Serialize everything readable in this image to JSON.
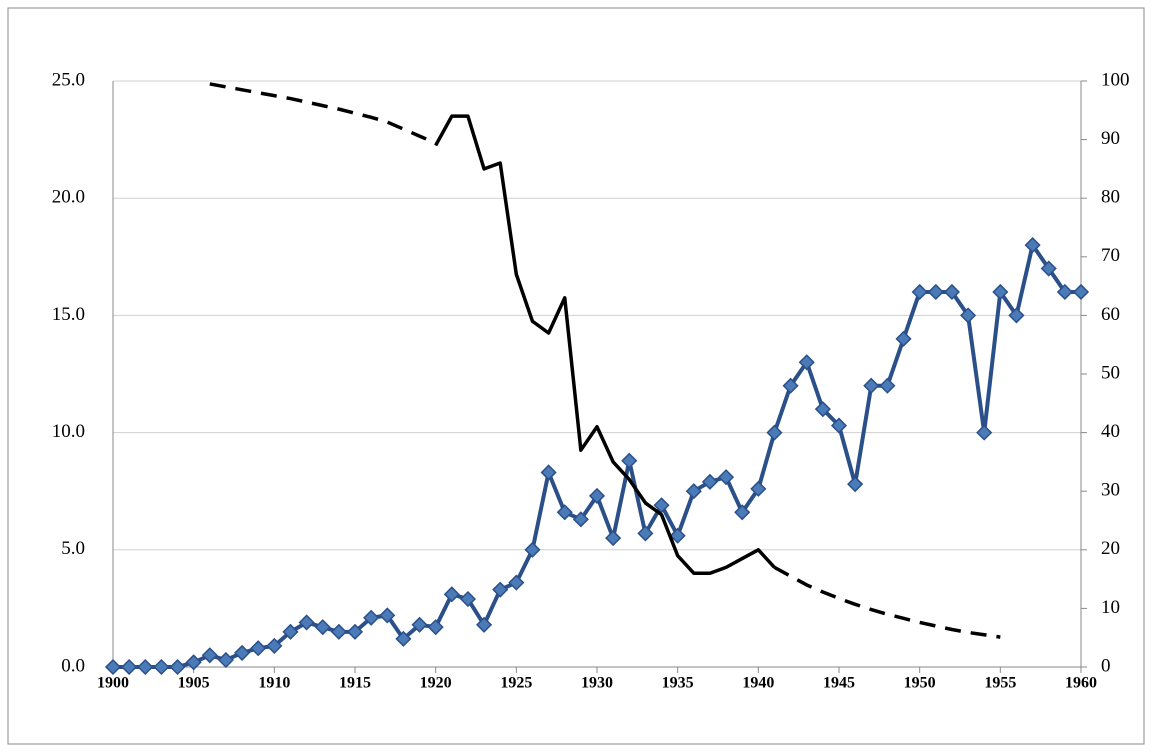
{
  "chart_data": {
    "type": "line",
    "x": [
      1900,
      1901,
      1902,
      1903,
      1904,
      1905,
      1906,
      1907,
      1908,
      1909,
      1910,
      1911,
      1912,
      1913,
      1914,
      1915,
      1916,
      1917,
      1918,
      1919,
      1920,
      1921,
      1922,
      1923,
      1924,
      1925,
      1926,
      1927,
      1928,
      1929,
      1930,
      1931,
      1932,
      1933,
      1934,
      1935,
      1936,
      1937,
      1938,
      1939,
      1940,
      1941,
      1942,
      1943,
      1944,
      1945,
      1946,
      1947,
      1948,
      1949,
      1950,
      1951,
      1952,
      1953,
      1954,
      1955,
      1956,
      1957,
      1958,
      1959,
      1960
    ],
    "xlim": [
      1900,
      1960
    ],
    "xticks": [
      1900,
      1905,
      1910,
      1915,
      1920,
      1925,
      1930,
      1935,
      1940,
      1945,
      1950,
      1955,
      1960
    ],
    "ylim": [
      0,
      25
    ],
    "yticks": [
      {
        "value": 0,
        "label": "0.0"
      },
      {
        "value": 5,
        "label": "5.0"
      },
      {
        "value": 10,
        "label": "10.0"
      },
      {
        "value": 15,
        "label": "15.0"
      },
      {
        "value": 20,
        "label": "20.0"
      },
      {
        "value": 25,
        "label": "25.0"
      }
    ],
    "y2lim": [
      0,
      100
    ],
    "y2ticks": [
      0,
      10,
      20,
      30,
      40,
      50,
      60,
      70,
      80,
      90,
      100
    ],
    "grid": true,
    "series": [
      {
        "color": "#2b5089",
        "marker": "diamond",
        "marker_color": "#4a7ab8",
        "values": [
          0,
          0,
          0,
          0,
          0,
          0.2,
          0.5,
          0.3,
          0.6,
          0.8,
          0.9,
          1.5,
          1.9,
          1.7,
          1.5,
          1.5,
          2.1,
          2.2,
          1.2,
          1.8,
          1.7,
          3.1,
          2.9,
          1.8,
          3.3,
          3.6,
          5.0,
          8.3,
          6.6,
          6.3,
          7.3,
          5.5,
          8.8,
          5.7,
          6.9,
          5.6,
          7.5,
          7.9,
          8.1,
          6.6,
          7.6,
          10.0,
          12.0,
          13.0,
          11.0,
          10.3,
          7.8,
          12.0,
          12.0,
          14.0,
          16.0,
          16.0,
          16.0,
          15.0,
          10.0,
          16.0,
          15.0,
          18.0,
          17.0,
          16.0,
          16.0
        ]
      },
      {
        "color": "#000000",
        "axis": "y2",
        "style": "solid",
        "values": [
          null,
          null,
          null,
          null,
          null,
          null,
          null,
          null,
          null,
          null,
          null,
          null,
          null,
          null,
          null,
          null,
          null,
          null,
          null,
          null,
          89,
          94,
          94,
          85,
          86,
          67,
          59,
          57,
          63,
          37,
          41,
          35,
          32,
          28,
          26,
          19,
          16,
          16,
          17,
          18.5,
          20,
          17,
          null,
          null,
          null,
          null,
          null,
          null,
          null,
          null,
          null,
          null,
          null,
          null,
          null,
          null,
          null,
          null,
          null,
          null,
          null
        ]
      },
      {
        "color": "#000000",
        "axis": "y2",
        "style": "dashed",
        "values": [
          null,
          null,
          null,
          null,
          null,
          null,
          99.5,
          99,
          98.5,
          98,
          97.5,
          97,
          96.4,
          95.8,
          95.2,
          94.5,
          93.8,
          93,
          91.8,
          90.6,
          89.4,
          null,
          null,
          null,
          null,
          null,
          null,
          null,
          null,
          null,
          null,
          null,
          null,
          null,
          null,
          null,
          null,
          null,
          null,
          null,
          null,
          17,
          15.5,
          14,
          12.8,
          11.7,
          10.7,
          9.8,
          9,
          8.3,
          7.6,
          7,
          6.4,
          5.9,
          5.5,
          5.1,
          null,
          null,
          null,
          null,
          null
        ]
      }
    ]
  }
}
